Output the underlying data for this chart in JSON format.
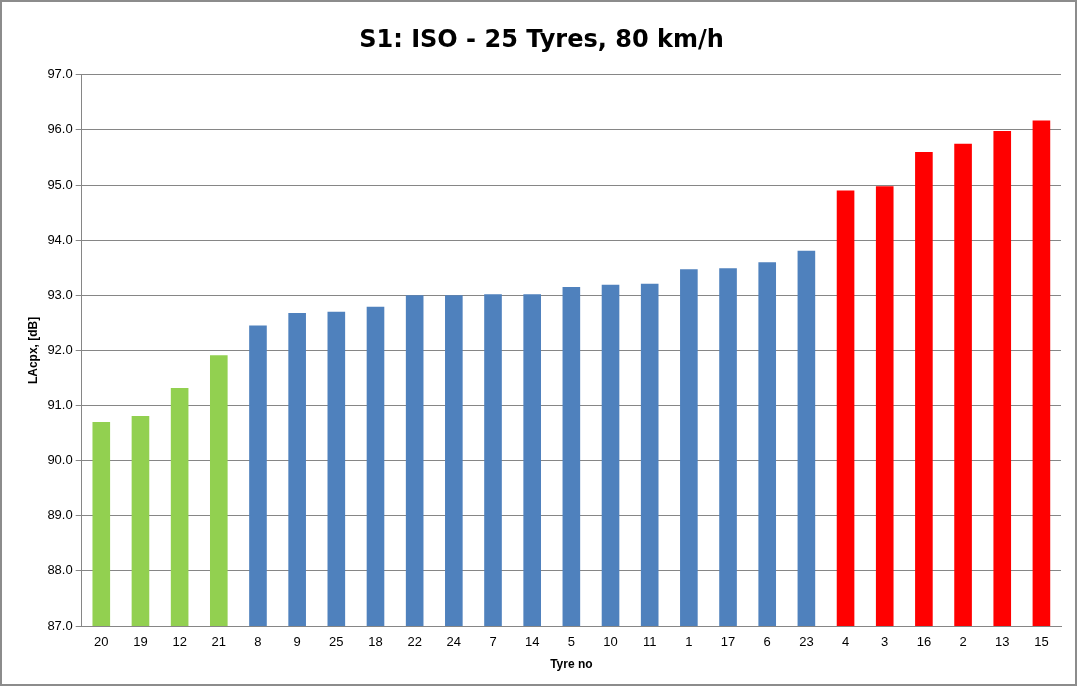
{
  "chart_data": {
    "type": "bar",
    "title": "S1: ISO - 25 Tyres, 80 km/h",
    "xlabel": "Tyre no",
    "ylabel": "LAcpx, [dB]",
    "categories": [
      "20",
      "19",
      "12",
      "21",
      "8",
      "9",
      "25",
      "18",
      "22",
      "24",
      "7",
      "14",
      "5",
      "10",
      "11",
      "1",
      "17",
      "6",
      "23",
      "4",
      "3",
      "16",
      "2",
      "13",
      "15"
    ],
    "values": [
      90.7,
      90.81,
      91.32,
      91.91,
      92.45,
      92.68,
      92.7,
      92.79,
      93.0,
      93.0,
      93.02,
      93.02,
      93.15,
      93.19,
      93.21,
      93.47,
      93.49,
      93.6,
      93.81,
      94.9,
      94.98,
      95.6,
      95.75,
      95.98,
      96.17
    ],
    "colors": [
      "#92d050",
      "#92d050",
      "#92d050",
      "#92d050",
      "#4f81bd",
      "#4f81bd",
      "#4f81bd",
      "#4f81bd",
      "#4f81bd",
      "#4f81bd",
      "#4f81bd",
      "#4f81bd",
      "#4f81bd",
      "#4f81bd",
      "#4f81bd",
      "#4f81bd",
      "#4f81bd",
      "#4f81bd",
      "#4f81bd",
      "#ff0000",
      "#ff0000",
      "#ff0000",
      "#ff0000",
      "#ff0000",
      "#ff0000"
    ],
    "ylim": [
      87,
      97
    ],
    "yticks": [
      {
        "value": 87,
        "label": "87.0"
      },
      {
        "value": 88,
        "label": "88.0"
      },
      {
        "value": 89,
        "label": "89.0"
      },
      {
        "value": 90,
        "label": "90.0"
      },
      {
        "value": 91,
        "label": "91.0"
      },
      {
        "value": 92,
        "label": "92.0"
      },
      {
        "value": 93,
        "label": "93.0"
      },
      {
        "value": 94,
        "label": "94.0"
      },
      {
        "value": 95,
        "label": "95.0"
      },
      {
        "value": 96,
        "label": "96.0"
      },
      {
        "value": 97,
        "label": "97.0"
      }
    ],
    "grid": "y",
    "legend": false
  }
}
